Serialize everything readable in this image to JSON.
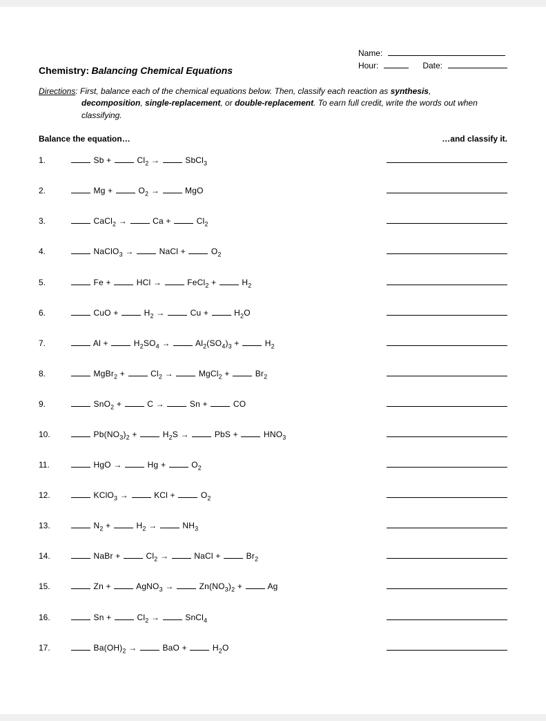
{
  "header": {
    "name_label": "Name:",
    "hour_label": "Hour:",
    "date_label": "Date:"
  },
  "title": {
    "prefix": "Chemistry:",
    "main": "Balancing Chemical Equations"
  },
  "directions": {
    "lead": "Directions",
    "line1_a": ":  First, balance each of the chemical equations below.  Then, classify each reaction as ",
    "syn": "synthesis",
    "line2_a": ", ",
    "decomp": "decomposition",
    "line2_b": ", ",
    "single": "single-replacement",
    "line2_c": ", or ",
    "double": "double-replacement",
    "line2_d": ".  To earn full credit, write the words out when classifying."
  },
  "columns": {
    "left": "Balance the equation…",
    "right": "…and classify it."
  },
  "arrow": "→",
  "problems": [
    {
      "num": "1.",
      "terms": [
        [
          "Sb",
          ""
        ],
        [
          "+"
        ],
        [
          "Cl",
          "2"
        ],
        [
          "→"
        ],
        [
          "SbCl",
          "3"
        ]
      ]
    },
    {
      "num": "2.",
      "terms": [
        [
          "Mg",
          ""
        ],
        [
          "+"
        ],
        [
          "O",
          "2"
        ],
        [
          "→"
        ],
        [
          "MgO",
          ""
        ]
      ]
    },
    {
      "num": "3.",
      "terms": [
        [
          "CaCl",
          "2"
        ],
        [
          "→"
        ],
        [
          "Ca",
          ""
        ],
        [
          "+"
        ],
        [
          "Cl",
          "2"
        ]
      ]
    },
    {
      "num": "4.",
      "terms": [
        [
          "NaClO",
          "3"
        ],
        [
          "→"
        ],
        [
          "NaCl",
          ""
        ],
        [
          "+"
        ],
        [
          "O",
          "2"
        ]
      ]
    },
    {
      "num": "5.",
      "terms": [
        [
          "Fe",
          ""
        ],
        [
          "+"
        ],
        [
          "HCl",
          ""
        ],
        [
          "→"
        ],
        [
          "FeCl",
          "2"
        ],
        [
          "+"
        ],
        [
          "H",
          "2"
        ]
      ]
    },
    {
      "num": "6.",
      "terms": [
        [
          "CuO",
          ""
        ],
        [
          "+"
        ],
        [
          "H",
          "2"
        ],
        [
          "→"
        ],
        [
          "Cu",
          ""
        ],
        [
          "+"
        ],
        [
          "H",
          "2",
          "O",
          ""
        ]
      ]
    },
    {
      "num": "7.",
      "terms": [
        [
          "Al",
          ""
        ],
        [
          "+"
        ],
        [
          "H",
          "2",
          "SO",
          "4"
        ],
        [
          "→"
        ],
        [
          "Al",
          "2",
          "(SO",
          "4",
          ")",
          "3"
        ],
        [
          "+"
        ],
        [
          "H",
          "2"
        ]
      ]
    },
    {
      "num": "8.",
      "terms": [
        [
          "MgBr",
          "2"
        ],
        [
          "+"
        ],
        [
          "Cl",
          "2"
        ],
        [
          "→"
        ],
        [
          "MgCl",
          "2"
        ],
        [
          "+"
        ],
        [
          "Br",
          "2"
        ]
      ]
    },
    {
      "num": "9.",
      "terms": [
        [
          "SnO",
          "2"
        ],
        [
          "+"
        ],
        [
          "C",
          ""
        ],
        [
          "→"
        ],
        [
          "Sn",
          ""
        ],
        [
          "+"
        ],
        [
          "CO",
          ""
        ]
      ]
    },
    {
      "num": "10.",
      "terms": [
        [
          "Pb(NO",
          "3",
          ")",
          "2"
        ],
        [
          "+"
        ],
        [
          "H",
          "2",
          "S",
          ""
        ],
        [
          "→"
        ],
        [
          "PbS",
          ""
        ],
        [
          "+"
        ],
        [
          "HNO",
          "3"
        ]
      ]
    },
    {
      "num": "11.",
      "terms": [
        [
          "HgO",
          ""
        ],
        [
          "→"
        ],
        [
          "Hg",
          ""
        ],
        [
          "+"
        ],
        [
          "O",
          "2"
        ]
      ]
    },
    {
      "num": "12.",
      "terms": [
        [
          "KClO",
          "3"
        ],
        [
          "→"
        ],
        [
          "KCl",
          ""
        ],
        [
          "+"
        ],
        [
          "O",
          "2"
        ]
      ]
    },
    {
      "num": "13.",
      "terms": [
        [
          "N",
          "2"
        ],
        [
          "+"
        ],
        [
          "H",
          "2"
        ],
        [
          "→"
        ],
        [
          "NH",
          "3"
        ]
      ]
    },
    {
      "num": "14.",
      "terms": [
        [
          "NaBr",
          ""
        ],
        [
          "+"
        ],
        [
          "Cl",
          "2"
        ],
        [
          "→"
        ],
        [
          "NaCl",
          ""
        ],
        [
          "+"
        ],
        [
          "Br",
          "2"
        ]
      ]
    },
    {
      "num": "15.",
      "terms": [
        [
          "Zn",
          ""
        ],
        [
          "+"
        ],
        [
          "AgNO",
          "3"
        ],
        [
          "→"
        ],
        [
          "Zn(NO",
          "3",
          ")",
          "2"
        ],
        [
          "+"
        ],
        [
          "Ag",
          ""
        ]
      ]
    },
    {
      "num": "16.",
      "terms": [
        [
          "Sn",
          ""
        ],
        [
          "+"
        ],
        [
          "Cl",
          "2"
        ],
        [
          "→"
        ],
        [
          "SnCl",
          "4"
        ]
      ]
    },
    {
      "num": "17.",
      "terms": [
        [
          "Ba(OH)",
          "2"
        ],
        [
          "→"
        ],
        [
          "BaO",
          ""
        ],
        [
          "+"
        ],
        [
          "H",
          "2",
          "O",
          ""
        ]
      ]
    }
  ]
}
